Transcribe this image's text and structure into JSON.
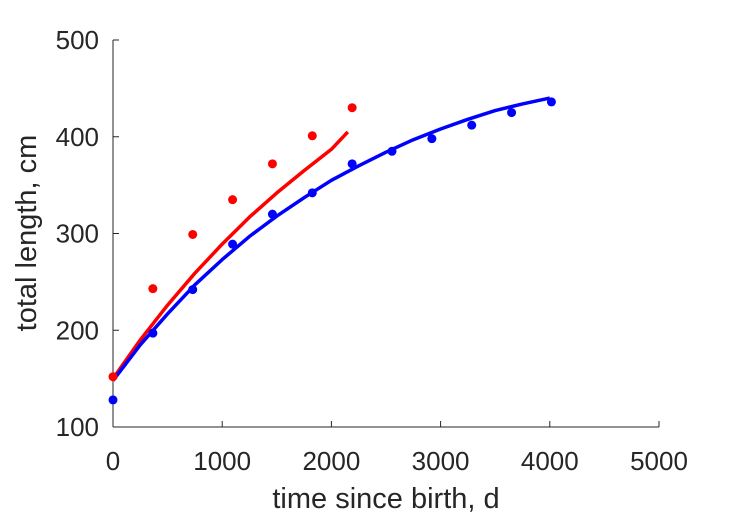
{
  "chart_data": {
    "type": "scatter",
    "title": "",
    "xlabel": "time since birth, d",
    "ylabel": "total length, cm",
    "xlim": [
      0,
      5000
    ],
    "ylim": [
      100,
      500
    ],
    "xticks": [
      0,
      1000,
      2000,
      3000,
      4000,
      5000
    ],
    "yticks": [
      100,
      200,
      300,
      400,
      500
    ],
    "grid": false,
    "legend": "none",
    "series": [
      {
        "kind": "points",
        "color": "#ff0000",
        "x": [
          0,
          365,
          730,
          1095,
          1460,
          1825,
          2190
        ],
        "y": [
          152,
          243,
          299,
          335,
          372,
          401,
          430
        ]
      },
      {
        "kind": "points",
        "color": "#0000ff",
        "x": [
          0,
          365,
          730,
          1095,
          1460,
          1825,
          2190,
          2555,
          2920,
          3285,
          3650,
          4015
        ],
        "y": [
          128,
          197,
          242,
          289,
          320,
          342,
          372,
          385,
          398,
          412,
          425,
          436
        ]
      },
      {
        "kind": "line",
        "color": "#ff0000",
        "x": [
          0,
          250,
          500,
          750,
          1000,
          1250,
          1500,
          1750,
          2000,
          2150
        ],
        "y": [
          150,
          190,
          226,
          259,
          289,
          317,
          342,
          365,
          387,
          405
        ]
      },
      {
        "kind": "line",
        "color": "#0000ff",
        "x": [
          0,
          250,
          500,
          750,
          1000,
          1250,
          1500,
          1750,
          2000,
          2250,
          2500,
          2750,
          3000,
          3250,
          3500,
          3750,
          4000
        ],
        "y": [
          148,
          185,
          217,
          247,
          273,
          297,
          318,
          337,
          355,
          370,
          384,
          397,
          408,
          418,
          427,
          434,
          440
        ]
      }
    ]
  }
}
